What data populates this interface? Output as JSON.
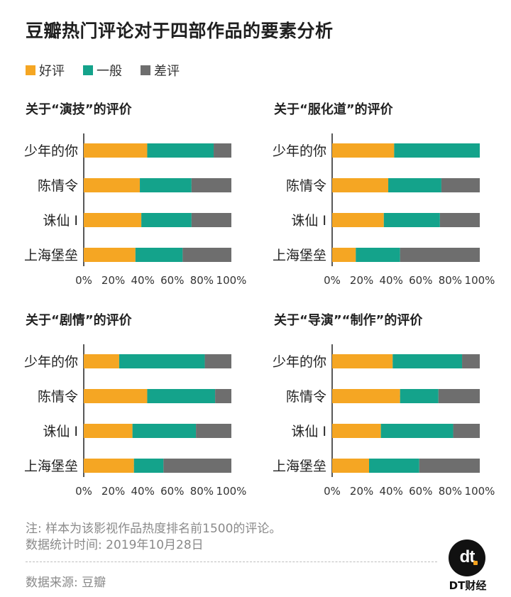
{
  "title": "豆瓣热门评论对于四部作品的要素分析",
  "legend": [
    {
      "label": "好评",
      "color": "#f5a623"
    },
    {
      "label": "一般",
      "color": "#14a38b"
    },
    {
      "label": "差评",
      "color": "#6e6e6e"
    }
  ],
  "chart_data": [
    {
      "type": "bar",
      "orientation": "horizontal",
      "stacked": true,
      "title": "关于“演技”的评价",
      "categories": [
        "少年的你",
        "陈情令",
        "诛仙 Ⅰ",
        "上海堡垒"
      ],
      "series": [
        {
          "name": "好评",
          "values": [
            43,
            38,
            39,
            35
          ]
        },
        {
          "name": "一般",
          "values": [
            45,
            35,
            34,
            32
          ]
        },
        {
          "name": "差评",
          "values": [
            12,
            27,
            27,
            33
          ]
        }
      ],
      "xlim": [
        0,
        100
      ],
      "xticks": [
        "0%",
        "20%",
        "40%",
        "60%",
        "80%",
        "100%"
      ]
    },
    {
      "type": "bar",
      "orientation": "horizontal",
      "stacked": true,
      "title": "关于“服化道”的评价",
      "categories": [
        "少年的你",
        "陈情令",
        "诛仙 Ⅰ",
        "上海堡垒"
      ],
      "series": [
        {
          "name": "好评",
          "values": [
            42,
            38,
            35,
            16
          ]
        },
        {
          "name": "一般",
          "values": [
            58,
            36,
            38,
            30
          ]
        },
        {
          "name": "差评",
          "values": [
            0,
            26,
            27,
            54
          ]
        }
      ],
      "xlim": [
        0,
        100
      ],
      "xticks": [
        "0%",
        "20%",
        "40%",
        "60%",
        "80%",
        "100%"
      ]
    },
    {
      "type": "bar",
      "orientation": "horizontal",
      "stacked": true,
      "title": "关于“剧情”的评价",
      "categories": [
        "少年的你",
        "陈情令",
        "诛仙 Ⅰ",
        "上海堡垒"
      ],
      "series": [
        {
          "name": "好评",
          "values": [
            24,
            43,
            33,
            34
          ]
        },
        {
          "name": "一般",
          "values": [
            58,
            46,
            43,
            20
          ]
        },
        {
          "name": "差评",
          "values": [
            18,
            11,
            24,
            46
          ]
        }
      ],
      "xlim": [
        0,
        100
      ],
      "xticks": [
        "0%",
        "20%",
        "40%",
        "60%",
        "80%",
        "100%"
      ]
    },
    {
      "type": "bar",
      "orientation": "horizontal",
      "stacked": true,
      "title": "关于“导演”“制作”的评价",
      "categories": [
        "少年的你",
        "陈情令",
        "诛仙 Ⅰ",
        "上海堡垒"
      ],
      "series": [
        {
          "name": "好评",
          "values": [
            41,
            46,
            33,
            25
          ]
        },
        {
          "name": "一般",
          "values": [
            47,
            26,
            49,
            34
          ]
        },
        {
          "name": "差评",
          "values": [
            12,
            28,
            18,
            41
          ]
        }
      ],
      "xlim": [
        0,
        100
      ],
      "xticks": [
        "0%",
        "20%",
        "40%",
        "60%",
        "80%",
        "100%"
      ]
    }
  ],
  "notes": {
    "line1": "注: 样本为该影视作品热度排名前1500的评论。",
    "line2": "数据统计时间: 2019年10月28日",
    "source": "数据来源: 豆瓣"
  },
  "logo": {
    "mark": "dt",
    "caption": "DT财经"
  }
}
